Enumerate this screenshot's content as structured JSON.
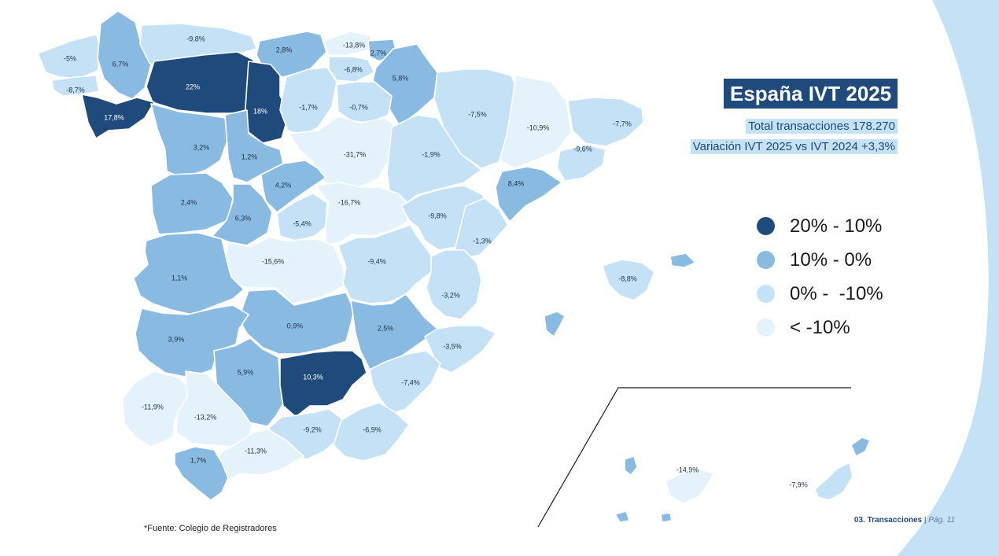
{
  "title": "España IVT 2025",
  "subtitle_total": "Total transacciones 178.270",
  "subtitle_variation": "Variación IVT 2025 vs IVT 2024 +3,3%",
  "source_note": "*Fuente: Colegio de Registradores",
  "footer": {
    "section": "03. Transacciones",
    "separator": "|",
    "page": "Pág. 11"
  },
  "colors": {
    "background": "#c4e1f5",
    "sea_white": "#ffffff",
    "cat_dark": "#1f4a7c",
    "cat_medium": "#89bbe2",
    "cat_light": "#c4e1f5",
    "cat_pale": "#e3f2fb"
  },
  "legend": [
    {
      "label": "20% - 10%",
      "color": "#1f4a7c"
    },
    {
      "label": "10% - 0%",
      "color": "#89bbe2"
    },
    {
      "label": "0% -  -10%",
      "color": "#c4e1f5"
    },
    {
      "label": "< -10%",
      "color": "#e3f2fb"
    }
  ],
  "regions": [
    {
      "label": "-5%",
      "value": -5.0
    },
    {
      "label": "6,7%",
      "value": 6.7
    },
    {
      "label": "-9,8%",
      "value": -9.8
    },
    {
      "label": "2,8%",
      "value": 2.8
    },
    {
      "label": "-13,8%",
      "value": -13.8
    },
    {
      "label": "2,7%",
      "value": 2.7
    },
    {
      "label": "-6,8%",
      "value": -6.8
    },
    {
      "label": "-8,7%",
      "value": -8.7
    },
    {
      "label": "22%",
      "value": 22.0
    },
    {
      "label": "18%",
      "value": 18.0
    },
    {
      "label": "5,8%",
      "value": 5.8
    },
    {
      "label": "17,8%",
      "value": 17.8
    },
    {
      "label": "-1,7%",
      "value": -1.7
    },
    {
      "label": "-0,7%",
      "value": -0.7
    },
    {
      "label": "-7,5%",
      "value": -7.5
    },
    {
      "label": "-10,9%",
      "value": -10.9
    },
    {
      "label": "-7,7%",
      "value": -7.7
    },
    {
      "label": "3,2%",
      "value": 3.2
    },
    {
      "label": "1,2%",
      "value": 1.2
    },
    {
      "label": "-31,7%",
      "value": -31.7
    },
    {
      "label": "-1,9%",
      "value": -1.9
    },
    {
      "label": "-9,6%",
      "value": -9.6
    },
    {
      "label": "4,2%",
      "value": 4.2
    },
    {
      "label": "8,4%",
      "value": 8.4
    },
    {
      "label": "2,4%",
      "value": 2.4
    },
    {
      "label": "6,3%",
      "value": 6.3
    },
    {
      "label": "-5,4%",
      "value": -5.4
    },
    {
      "label": "-16,7%",
      "value": -16.7
    },
    {
      "label": "-9,8%",
      "value": -9.8
    },
    {
      "label": "-1,3%",
      "value": -1.3
    },
    {
      "label": "-15,6%",
      "value": -15.6
    },
    {
      "label": "-9,4%",
      "value": -9.4
    },
    {
      "label": "-8,8%",
      "value": -8.8
    },
    {
      "label": "1,1%",
      "value": 1.1
    },
    {
      "label": "-3,2%",
      "value": -3.2
    },
    {
      "label": "0,9%",
      "value": 0.9
    },
    {
      "label": "2,5%",
      "value": 2.5
    },
    {
      "label": "3,9%",
      "value": 3.9
    },
    {
      "label": "-3,5%",
      "value": -3.5
    },
    {
      "label": "5,9%",
      "value": 5.9
    },
    {
      "label": "10,3%",
      "value": 10.3
    },
    {
      "label": "-7,4%",
      "value": -7.4
    },
    {
      "label": "-11,9%",
      "value": -11.9
    },
    {
      "label": "-13,2%",
      "value": -13.2
    },
    {
      "label": "-9,2%",
      "value": -9.2
    },
    {
      "label": "-6,9%",
      "value": -6.9
    },
    {
      "label": "-11,3%",
      "value": -11.3
    },
    {
      "label": "1,7%",
      "value": 1.7
    },
    {
      "label": "-14,9%",
      "value": -14.9
    },
    {
      "label": "-7,9%",
      "value": -7.9
    }
  ]
}
